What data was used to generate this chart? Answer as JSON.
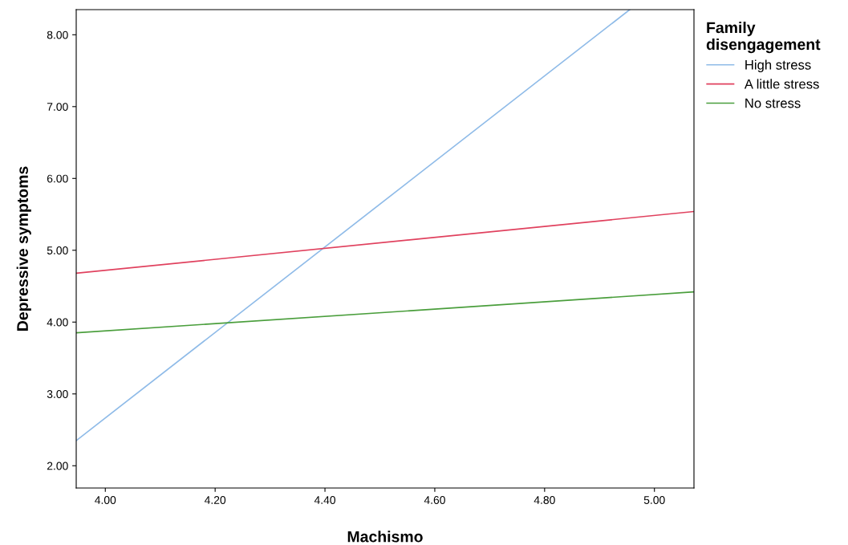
{
  "chart_data": {
    "type": "line",
    "xlabel": "Machismo",
    "ylabel": "Depressive symptoms",
    "legend_title": "Family\ndisengagement",
    "legend": "top right",
    "grid": false,
    "marker": "none",
    "line_style": "solid",
    "xlim": [
      3.947,
      5.072
    ],
    "ylim": [
      1.69,
      8.35
    ],
    "xticks": [
      {
        "value": 4.0,
        "label": "4.00"
      },
      {
        "value": 4.2,
        "label": "4.20"
      },
      {
        "value": 4.4,
        "label": "4.40"
      },
      {
        "value": 4.6,
        "label": "4.60"
      },
      {
        "value": 4.8,
        "label": "4.80"
      },
      {
        "value": 5.0,
        "label": "5.00"
      }
    ],
    "yticks": [
      {
        "value": 2,
        "label": "2.00"
      },
      {
        "value": 3,
        "label": "3.00"
      },
      {
        "value": 4,
        "label": "4.00"
      },
      {
        "value": 5,
        "label": "5.00"
      },
      {
        "value": 6,
        "label": "6.00"
      },
      {
        "value": 7,
        "label": "7.00"
      },
      {
        "value": 8,
        "label": "8.00"
      }
    ],
    "series": [
      {
        "name": "High stress",
        "color": "#8fbbe8",
        "x": [
          3.947,
          4.955
        ],
        "values": [
          2.35,
          8.35
        ]
      },
      {
        "name": "A little stress",
        "color": "#e0415e",
        "x": [
          3.947,
          5.072
        ],
        "values": [
          4.68,
          5.54
        ]
      },
      {
        "name": "No stress",
        "color": "#4a9e3c",
        "x": [
          3.947,
          5.072
        ],
        "values": [
          3.85,
          4.42
        ]
      }
    ]
  }
}
